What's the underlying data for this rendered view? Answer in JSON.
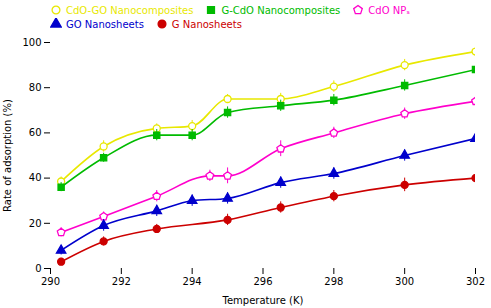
{
  "chart_data": {
    "type": "line",
    "xlabel": "Temperature (K)",
    "ylabel": "Rate of adsorption (%)",
    "xlim": [
      290,
      302
    ],
    "ylim": [
      0,
      100
    ],
    "xticks": [
      290,
      292,
      294,
      296,
      298,
      300,
      302
    ],
    "yticks": [
      0,
      20,
      40,
      60,
      80,
      100
    ],
    "grid": false,
    "legend": "top",
    "series": [
      {
        "name": "CdO-GO Nanocomposites",
        "color": "#e8e800",
        "marker": "circle-open",
        "x": [
          290.3,
          291.5,
          293.0,
          294.0,
          295.0,
          296.5,
          298.0,
          300.0,
          302.0
        ],
        "values": [
          38.5,
          54.0,
          62.0,
          63.0,
          75.0,
          75.0,
          80.5,
          90.0,
          96.0
        ],
        "yerr": [
          2.0,
          2.5,
          2.0,
          2.5,
          2.0,
          2.5,
          2.5,
          2.5,
          2.5
        ]
      },
      {
        "name": "G-CdO Nanocomposites",
        "color": "#00bb00",
        "marker": "square",
        "x": [
          290.3,
          291.5,
          293.0,
          294.0,
          295.0,
          296.5,
          298.0,
          300.0,
          302.0
        ],
        "values": [
          36.0,
          49.0,
          59.0,
          59.0,
          69.0,
          72.0,
          74.5,
          81.0,
          88.0
        ],
        "yerr": [
          2.0,
          2.0,
          2.5,
          2.5,
          2.5,
          2.5,
          2.5,
          2.5,
          2.5
        ]
      },
      {
        "name": "CdO NPₛ",
        "color": "#ff00cc",
        "marker": "pentagon-open",
        "x": [
          290.3,
          291.5,
          293.0,
          294.5,
          295.0,
          296.5,
          298.0,
          300.0,
          302.0
        ],
        "values": [
          16.0,
          23.0,
          32.0,
          41.0,
          41.0,
          53.0,
          60.0,
          68.5,
          74.0
        ],
        "yerr": [
          2.0,
          2.0,
          2.5,
          2.5,
          3.5,
          3.5,
          2.5,
          2.5,
          2.5
        ]
      },
      {
        "name": "GO Nanosheets",
        "color": "#0000cc",
        "marker": "triangle",
        "x": [
          290.3,
          291.5,
          293.0,
          294.0,
          295.0,
          296.5,
          298.0,
          300.0,
          302.0
        ],
        "values": [
          8.0,
          19.0,
          25.5,
          30.0,
          31.0,
          38.0,
          42.0,
          50.0,
          57.5
        ],
        "yerr": [
          2.0,
          2.5,
          2.5,
          2.5,
          2.5,
          2.5,
          2.5,
          2.5,
          3.5
        ]
      },
      {
        "name": "G Nanosheets",
        "color": "#cc0000",
        "marker": "circle",
        "x": [
          290.3,
          291.5,
          293.0,
          295.0,
          296.5,
          298.0,
          300.0,
          302.0
        ],
        "values": [
          3.0,
          12.0,
          17.5,
          21.5,
          27.0,
          32.0,
          37.0,
          40.0
        ],
        "yerr": [
          1.5,
          2.0,
          2.0,
          2.5,
          2.5,
          2.5,
          3.0,
          3.0
        ]
      }
    ]
  }
}
